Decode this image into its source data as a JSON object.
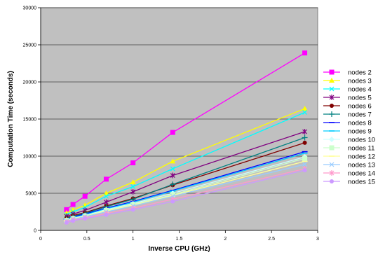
{
  "chart_data": {
    "type": "line",
    "xlabel": "Inverse CPU (GHz)",
    "ylabel": "Computation Time (seconds)",
    "xlim": [
      0,
      3
    ],
    "ylim": [
      0,
      30000
    ],
    "x_ticks": [
      0,
      0.5,
      1,
      1.5,
      2,
      2.5,
      3
    ],
    "y_ticks": [
      0,
      5000,
      10000,
      15000,
      20000,
      25000,
      30000
    ],
    "grid": "horizontal",
    "legend_position": "right",
    "plot_background": "#c0c0c0",
    "x": [
      0.28,
      0.35,
      0.48,
      0.71,
      1.0,
      1.43,
      2.86
    ],
    "series": [
      {
        "name": "nodes 2",
        "color": "#ff00ff",
        "marker": "square",
        "values": [
          2800,
          3500,
          4600,
          6900,
          9100,
          13200,
          23900
        ]
      },
      {
        "name": "nodes 3",
        "color": "#ffff00",
        "marker": "triangle",
        "values": [
          2350,
          2750,
          3400,
          5000,
          6500,
          9300,
          16400
        ]
      },
      {
        "name": "nodes 4",
        "color": "#00ffff",
        "marker": "x",
        "values": [
          2100,
          2500,
          3100,
          4600,
          5900,
          8300,
          15900
        ]
      },
      {
        "name": "nodes 5",
        "color": "#800080",
        "marker": "star",
        "values": [
          1900,
          2200,
          2700,
          3800,
          5200,
          7400,
          13300
        ]
      },
      {
        "name": "nodes 6",
        "color": "#800000",
        "marker": "circle",
        "values": [
          1700,
          2000,
          2400,
          3300,
          4300,
          6100,
          11800
        ]
      },
      {
        "name": "nodes 7",
        "color": "#008080",
        "marker": "plus",
        "values": [
          1600,
          1900,
          2300,
          3200,
          4200,
          6200,
          12500
        ]
      },
      {
        "name": "nodes 8",
        "color": "#0000ff",
        "marker": "dash",
        "values": [
          1500,
          1800,
          2200,
          3000,
          3900,
          5400,
          10600
        ]
      },
      {
        "name": "nodes 9",
        "color": "#00ccff",
        "marker": "dash",
        "values": [
          1450,
          1700,
          2100,
          2900,
          3800,
          5300,
          10400
        ]
      },
      {
        "name": "nodes 10",
        "color": "#ccffff",
        "marker": "diamond",
        "values": [
          1400,
          1650,
          2000,
          2800,
          3600,
          5000,
          9900
        ]
      },
      {
        "name": "nodes 11",
        "color": "#ccffcc",
        "marker": "square",
        "values": [
          1350,
          1600,
          1950,
          2700,
          3500,
          4800,
          9700
        ]
      },
      {
        "name": "nodes 12",
        "color": "#ffff99",
        "marker": "dash",
        "values": [
          1300,
          1550,
          1900,
          2600,
          3400,
          4700,
          9300
        ]
      },
      {
        "name": "nodes 13",
        "color": "#99ccff",
        "marker": "x",
        "values": [
          1250,
          1500,
          1850,
          2500,
          3300,
          4600,
          8900
        ]
      },
      {
        "name": "nodes 14",
        "color": "#ff99cc",
        "marker": "star",
        "values": [
          1150,
          1400,
          1700,
          2300,
          3000,
          4200,
          8300
        ]
      },
      {
        "name": "nodes 15",
        "color": "#cc99ff",
        "marker": "circle",
        "values": [
          1050,
          1300,
          1600,
          2100,
          2800,
          3900,
          8100
        ]
      }
    ]
  }
}
